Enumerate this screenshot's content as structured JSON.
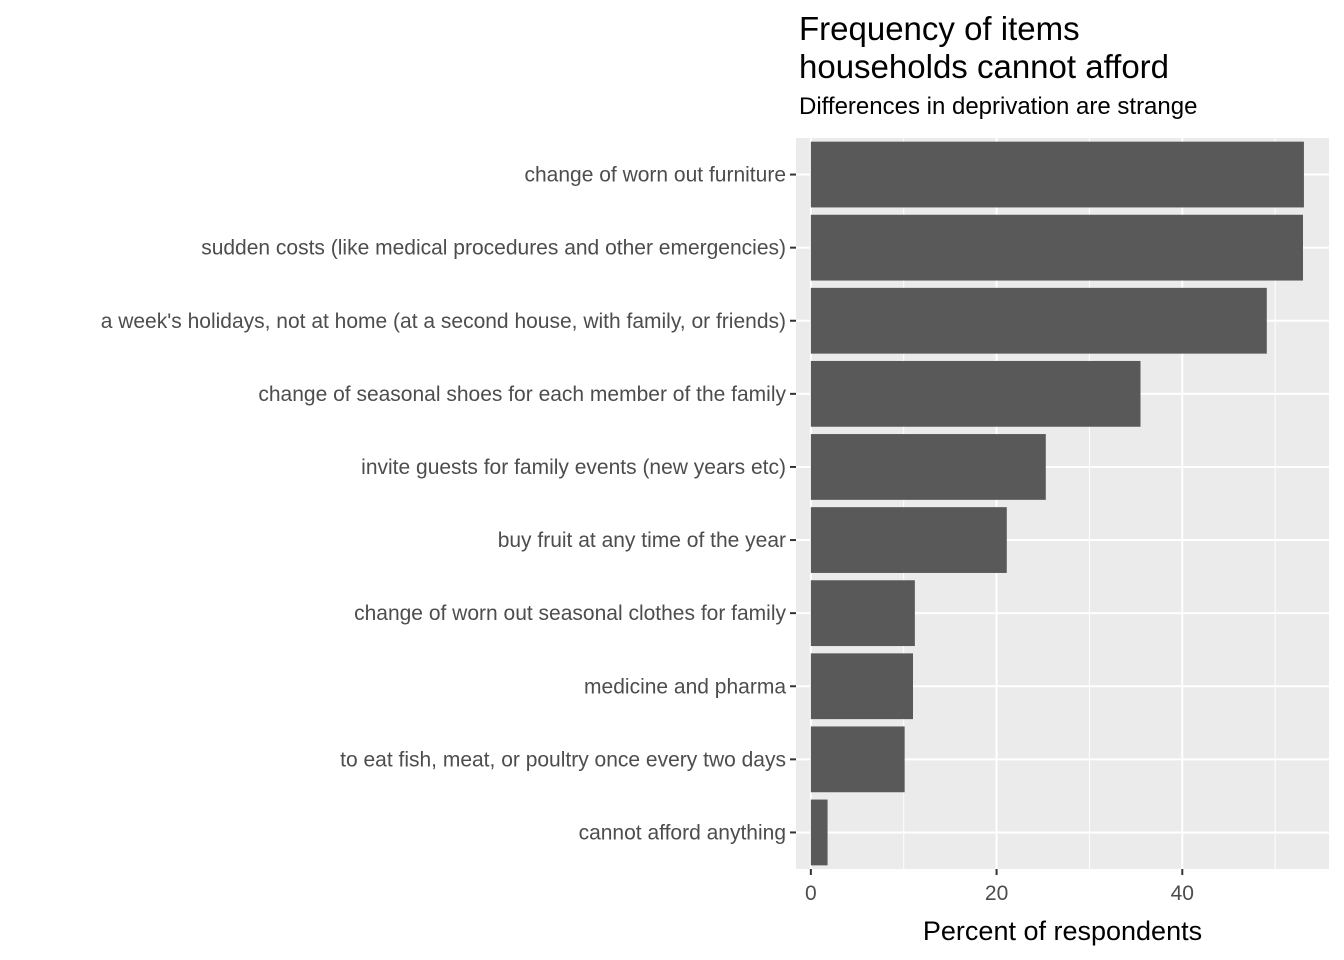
{
  "chart_data": {
    "type": "bar",
    "orientation": "horizontal",
    "title_lines": [
      "Frequency of items",
      "households cannot afford"
    ],
    "subtitle": "Differences in deprivation are strange",
    "xlabel": "Percent of respondents",
    "ylabel": "",
    "xlim": [
      -1.6,
      55.8
    ],
    "xticks": [
      0,
      20,
      40
    ],
    "x_minor_ticks": [
      10,
      30,
      50
    ],
    "categories": [
      "change of worn out furniture",
      "sudden costs (like medical procedures and other emergencies)",
      "a week's holidays, not at home (at a second house, with family, or friends)",
      "change of seasonal shoes for each member of the family",
      "invite guests for family events (new years etc)",
      "buy fruit at any time of the year",
      "change of worn out seasonal clothes for family",
      "medicine and pharma",
      "to eat fish, meat, or poultry once every two days",
      "cannot afford anything"
    ],
    "values": [
      53.1,
      53.0,
      49.1,
      35.5,
      25.3,
      21.1,
      11.2,
      11.0,
      10.1,
      1.8
    ],
    "grid": true,
    "legend": "none",
    "colors": {
      "bar": "#595959",
      "panel": "#ebebeb",
      "grid": "#ffffff",
      "tick_label": "#4d4d4d",
      "axis_title": "#000000"
    }
  }
}
